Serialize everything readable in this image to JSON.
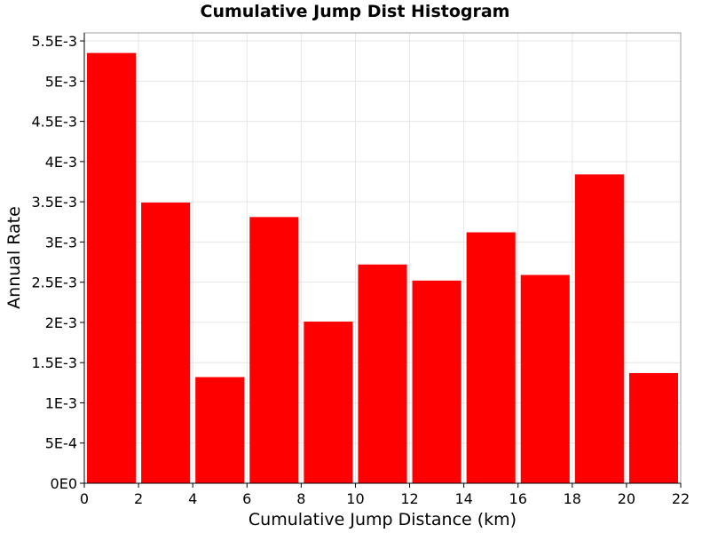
{
  "chart_data": {
    "type": "bar",
    "title": "Cumulative Jump Dist Histogram",
    "xlabel": "Cumulative Jump Distance (km)",
    "ylabel": "Annual Rate",
    "bin_width": 2,
    "x": [
      1,
      3,
      5,
      7,
      9,
      11,
      13,
      15,
      17,
      19,
      21
    ],
    "values": [
      0.00535,
      0.00349,
      0.00132,
      0.00331,
      0.00201,
      0.00272,
      0.00252,
      0.00312,
      0.00259,
      0.00384,
      0.00137
    ],
    "xlim": [
      0,
      22
    ],
    "ylim": [
      0,
      0.0056
    ],
    "x_ticks": [
      "0",
      "2",
      "4",
      "6",
      "8",
      "10",
      "12",
      "14",
      "16",
      "18",
      "20",
      "22"
    ],
    "y_ticks": [
      "0E0",
      "5E-4",
      "1E-3",
      "1.5E-3",
      "2E-3",
      "2.5E-3",
      "3E-3",
      "3.5E-3",
      "4E-3",
      "4.5E-3",
      "5E-3",
      "5.5E-3"
    ],
    "bar_color": "#ff0000",
    "grid": true,
    "legend": "none"
  }
}
